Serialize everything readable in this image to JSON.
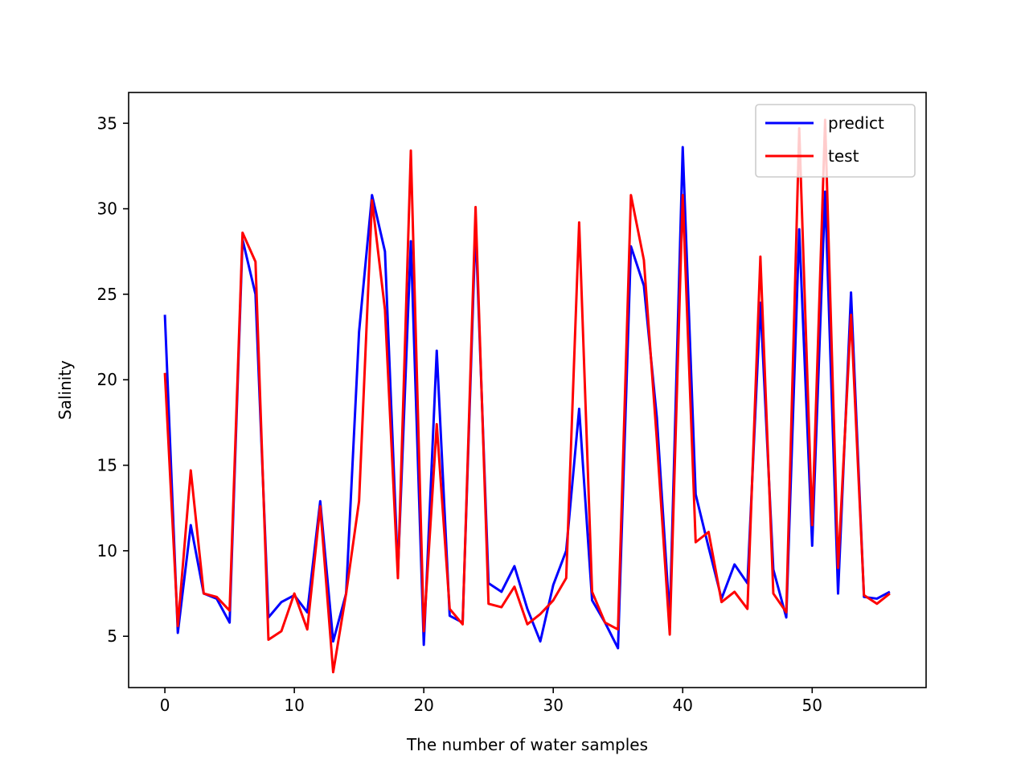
{
  "chart_data": {
    "type": "line",
    "title": "",
    "xlabel": "The number of water samples",
    "ylabel": "Salinity",
    "xlim": [
      -2.8,
      58.8
    ],
    "ylim": [
      2.0,
      36.8
    ],
    "xticks": [
      0,
      10,
      20,
      30,
      40,
      50
    ],
    "yticks": [
      5,
      10,
      15,
      20,
      25,
      30,
      35
    ],
    "grid": false,
    "legend": "top-right",
    "x": [
      0,
      1,
      2,
      3,
      4,
      5,
      6,
      7,
      8,
      9,
      10,
      11,
      12,
      13,
      14,
      15,
      16,
      17,
      18,
      19,
      20,
      21,
      22,
      23,
      24,
      25,
      26,
      27,
      28,
      29,
      30,
      31,
      32,
      33,
      34,
      35,
      36,
      37,
      38,
      39,
      40,
      41,
      42,
      43,
      44,
      45,
      46,
      47,
      48,
      49,
      50,
      51,
      52,
      53,
      54,
      55,
      56
    ],
    "series": [
      {
        "name": "predict",
        "color": "#0000ff",
        "values": [
          23.8,
          5.2,
          11.5,
          7.5,
          7.2,
          5.8,
          28.2,
          25.0,
          6.1,
          7.0,
          7.4,
          6.4,
          12.9,
          4.7,
          7.5,
          22.8,
          30.8,
          27.5,
          8.8,
          28.1,
          4.5,
          21.7,
          6.2,
          5.8,
          29.0,
          8.1,
          7.6,
          9.1,
          6.6,
          4.7,
          8.0,
          10.0,
          18.3,
          7.1,
          5.8,
          4.3,
          27.8,
          25.5,
          17.8,
          6.0,
          33.6,
          13.3,
          10.2,
          7.2,
          9.2,
          8.1,
          24.5,
          8.9,
          6.1,
          28.8,
          10.3,
          31.0,
          7.5,
          25.1,
          7.3,
          7.2,
          7.6
        ]
      },
      {
        "name": "test",
        "color": "#ff0000",
        "values": [
          20.4,
          5.6,
          14.7,
          7.5,
          7.3,
          6.5,
          28.6,
          26.9,
          4.8,
          5.3,
          7.5,
          5.4,
          12.6,
          2.9,
          7.5,
          12.9,
          30.5,
          24.1,
          8.4,
          33.4,
          5.3,
          17.4,
          6.6,
          5.7,
          30.1,
          6.9,
          6.7,
          7.9,
          5.7,
          6.3,
          7.1,
          8.4,
          29.2,
          7.6,
          5.8,
          5.4,
          30.8,
          27.0,
          16.5,
          5.1,
          30.8,
          10.5,
          11.1,
          7.0,
          7.6,
          6.6,
          27.2,
          7.5,
          6.4,
          34.7,
          11.5,
          35.2,
          9.0,
          23.8,
          7.4,
          6.9,
          7.5
        ]
      }
    ]
  }
}
